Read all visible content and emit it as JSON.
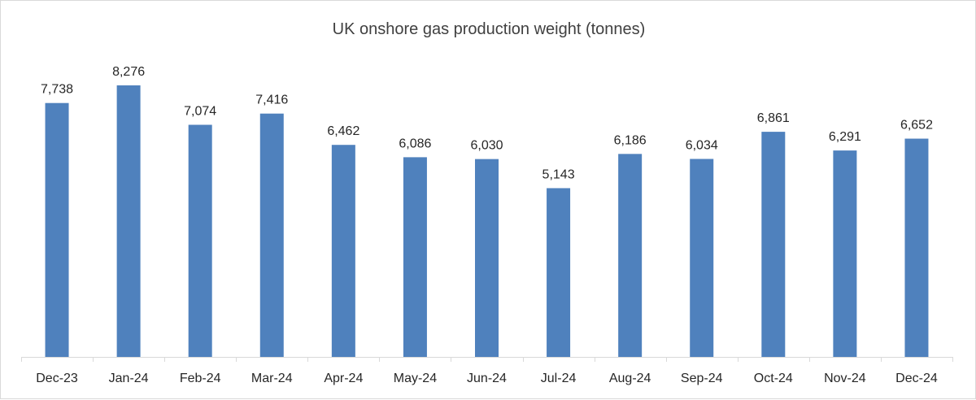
{
  "chart_data": {
    "type": "bar",
    "title": "UK onshore gas production weight (tonnes)",
    "xlabel": "",
    "ylabel": "",
    "categories": [
      "Dec-23",
      "Jan-24",
      "Feb-24",
      "Mar-24",
      "Apr-24",
      "May-24",
      "Jun-24",
      "Jul-24",
      "Aug-24",
      "Sep-24",
      "Oct-24",
      "Nov-24",
      "Dec-24"
    ],
    "values": [
      7738,
      8276,
      7074,
      7416,
      6462,
      6086,
      6030,
      5143,
      6186,
      6034,
      6861,
      6291,
      6652
    ],
    "data_labels": [
      "7,738",
      "8,276",
      "7,074",
      "7,416",
      "6,462",
      "6,086",
      "6,030",
      "5,143",
      "6,186",
      "6,034",
      "6,861",
      "6,291",
      "6,652"
    ],
    "ylim": [
      0,
      9000
    ],
    "grid": false,
    "legend": "none",
    "bar_color": "#4F81BD",
    "axis_color": "#D9D9D9"
  }
}
